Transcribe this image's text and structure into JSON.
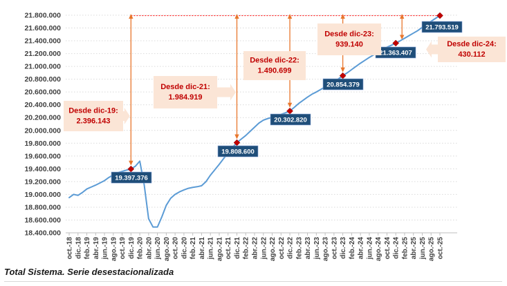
{
  "caption": "Total Sistema. Serie desestacionalizada",
  "colors": {
    "line": "#5B9BD5",
    "marker": "#C00000",
    "label_box": "#1F4E79",
    "label_box_border": "#8EA9DB",
    "label_text": "#FFFFFF",
    "callout_bg": "#FBE5D6",
    "callout_text": "#C00000",
    "arrow": "#E8762C",
    "ref_line": "#FF0000",
    "grid": "#D9D9D9",
    "axis_line": "#BFBFBF",
    "axis_text": "#404040"
  },
  "chart_data": {
    "type": "line",
    "title": "",
    "xlabel": "",
    "ylabel": "",
    "frequency": "monthly",
    "x_range": [
      "oct.-18",
      "oct.-25"
    ],
    "ylim": [
      18400000,
      21800000
    ],
    "y_step": 200000,
    "grid": true,
    "legend": false,
    "y_tick_labels": [
      "21.800.000",
      "21.600.000",
      "21.400.000",
      "21.200.000",
      "21.000.000",
      "20.800.000",
      "20.600.000",
      "20.400.000",
      "20.200.000",
      "20.000.000",
      "19.800.000",
      "19.600.000",
      "19.400.000",
      "19.200.000",
      "19.000.000",
      "18.800.000",
      "18.600.000",
      "18.400.000"
    ],
    "x_tick_labels": [
      "oct.-18",
      "dic.-18",
      "feb.-19",
      "abr.-19",
      "jun.-19",
      "ago.-19",
      "oct.-19",
      "dic.-19",
      "feb.-20",
      "abr.-20",
      "jun.-20",
      "ago.-20",
      "oct.-20",
      "dic.-20",
      "feb.-21",
      "abr.-21",
      "jun.-21",
      "ago.-21",
      "oct.-21",
      "dic.-21",
      "feb.-22",
      "abr.-22",
      "jun.-22",
      "ago.-22",
      "oct.-22",
      "dic.-22",
      "feb.-23",
      "abr.-23",
      "jun.-23",
      "ago.-23",
      "oct.-23",
      "dic.-23",
      "feb.-24",
      "abr.-24",
      "jun.-24",
      "ago.-24",
      "oct.-24",
      "dic.-24",
      "feb.-25",
      "abr.-25",
      "jun.-25",
      "ago.-25",
      "oct.-25"
    ],
    "series": [
      {
        "name": "Total Sistema (serie desestacionalizada)",
        "values": [
          18950000,
          19000000,
          18985000,
          19030000,
          19085000,
          19115000,
          19145000,
          19180000,
          19215000,
          19265000,
          19305000,
          19340000,
          19360000,
          19380000,
          19397376,
          19440000,
          19520000,
          19150000,
          18620000,
          18490000,
          18490000,
          18650000,
          18830000,
          18940000,
          19000000,
          19040000,
          19070000,
          19095000,
          19110000,
          19120000,
          19135000,
          19200000,
          19300000,
          19385000,
          19470000,
          19560000,
          19650000,
          19735000,
          19808600,
          19865000,
          19920000,
          19985000,
          20050000,
          20115000,
          20160000,
          20185000,
          20205000,
          20230000,
          20250000,
          20275000,
          20302820,
          20360000,
          20420000,
          20470000,
          20520000,
          20565000,
          20600000,
          20640000,
          20680000,
          20720000,
          20760000,
          20805000,
          20854379,
          20900000,
          20950000,
          21000000,
          21050000,
          21095000,
          21140000,
          21180000,
          21220000,
          21260000,
          21300000,
          21330000,
          21363407,
          21400000,
          21440000,
          21480000,
          21520000,
          21560000,
          21610000,
          21660000,
          21705000,
          21750000,
          21793519
        ]
      }
    ],
    "milestones": [
      {
        "month": "dic.-19",
        "index": 14,
        "value": 19397376,
        "value_label": "19.397.376",
        "callout_title": "Desde dic-19:",
        "callout_value": "2.396.143"
      },
      {
        "month": "dic.-21",
        "index": 38,
        "value": 19808600,
        "value_label": "19.808.600",
        "callout_title": "Desde dic-21:",
        "callout_value": "1.984.919"
      },
      {
        "month": "dic.-22",
        "index": 50,
        "value": 20302820,
        "value_label": "20.302.820",
        "callout_title": "Desde dic-22:",
        "callout_value": "1.490.699"
      },
      {
        "month": "dic.-23",
        "index": 62,
        "value": 20854379,
        "value_label": "20.854.379",
        "callout_title": "Desde dic-23:",
        "callout_value": "939.140"
      },
      {
        "month": "dic.-24",
        "index": 74,
        "value": 21363407,
        "value_label": "21.363.407",
        "callout_title": "Desde dic-24:",
        "callout_value": "430.112"
      },
      {
        "month": "oct.-25",
        "index": 84,
        "value": 21793519,
        "value_label": "21.793.519",
        "callout_title": null,
        "callout_value": null
      }
    ],
    "reference_line_value": 21793519
  }
}
